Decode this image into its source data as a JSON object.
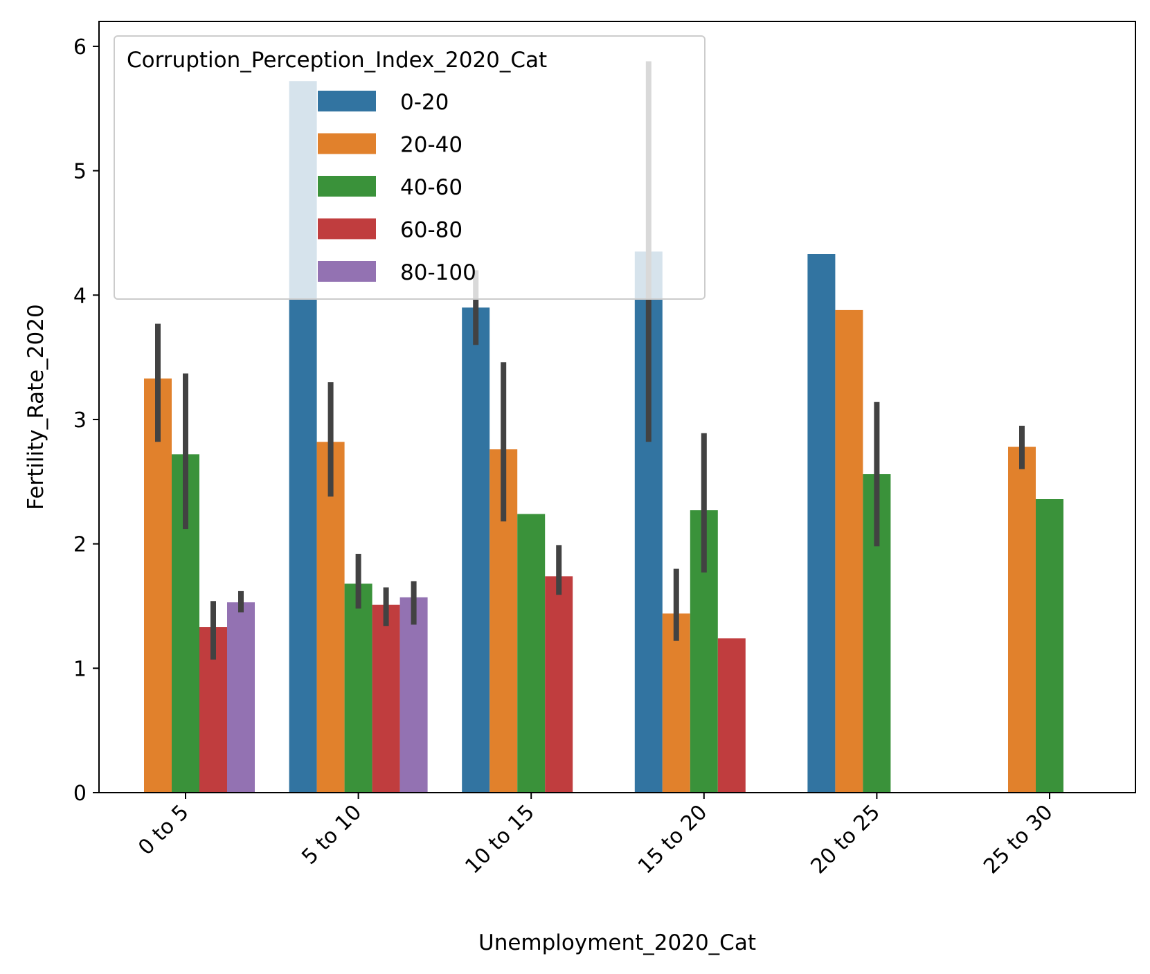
{
  "chart_data": {
    "type": "bar",
    "title": "",
    "xlabel": "Unemployment_2020_Cat",
    "ylabel": "Fertility_Rate_2020",
    "ylim": [
      0,
      6.2
    ],
    "yticks": [
      0,
      1,
      2,
      3,
      4,
      5,
      6
    ],
    "categories": [
      "0 to 5",
      "5 to 10",
      "10 to 15",
      "15 to 20",
      "20 to 25",
      "25 to 30"
    ],
    "grid": false,
    "legend": {
      "title": "Corruption_Perception_Index_2020_Cat",
      "placement": "top-left"
    },
    "series": [
      {
        "name": "0-20",
        "color": "#3274a1",
        "values": [
          null,
          5.72,
          3.9,
          4.35,
          4.33,
          null
        ],
        "ci": [
          null,
          null,
          [
            3.6,
            4.2
          ],
          [
            2.82,
            5.88
          ],
          null,
          null
        ]
      },
      {
        "name": "20-40",
        "color": "#e1812c",
        "values": [
          3.33,
          2.82,
          2.76,
          1.44,
          3.88,
          2.78
        ],
        "ci": [
          [
            2.82,
            3.77
          ],
          [
            2.38,
            3.3
          ],
          [
            2.18,
            3.46
          ],
          [
            1.22,
            1.8
          ],
          null,
          [
            2.6,
            2.95
          ]
        ]
      },
      {
        "name": "40-60",
        "color": "#3a923a",
        "values": [
          2.72,
          1.68,
          2.24,
          2.27,
          2.56,
          2.36
        ],
        "ci": [
          [
            2.12,
            3.37
          ],
          [
            1.48,
            1.92
          ],
          null,
          [
            1.77,
            2.89
          ],
          [
            1.98,
            3.14
          ],
          null
        ]
      },
      {
        "name": "60-80",
        "color": "#c03d3e",
        "values": [
          1.33,
          1.51,
          1.74,
          1.24,
          null,
          null
        ],
        "ci": [
          [
            1.07,
            1.54
          ],
          [
            1.34,
            1.65
          ],
          [
            1.59,
            1.99
          ],
          null,
          null,
          null
        ]
      },
      {
        "name": "80-100",
        "color": "#9372b2",
        "values": [
          1.53,
          1.57,
          null,
          null,
          null,
          null
        ],
        "ci": [
          [
            1.45,
            1.62
          ],
          [
            1.35,
            1.7
          ],
          null,
          null,
          null,
          null
        ]
      }
    ]
  }
}
